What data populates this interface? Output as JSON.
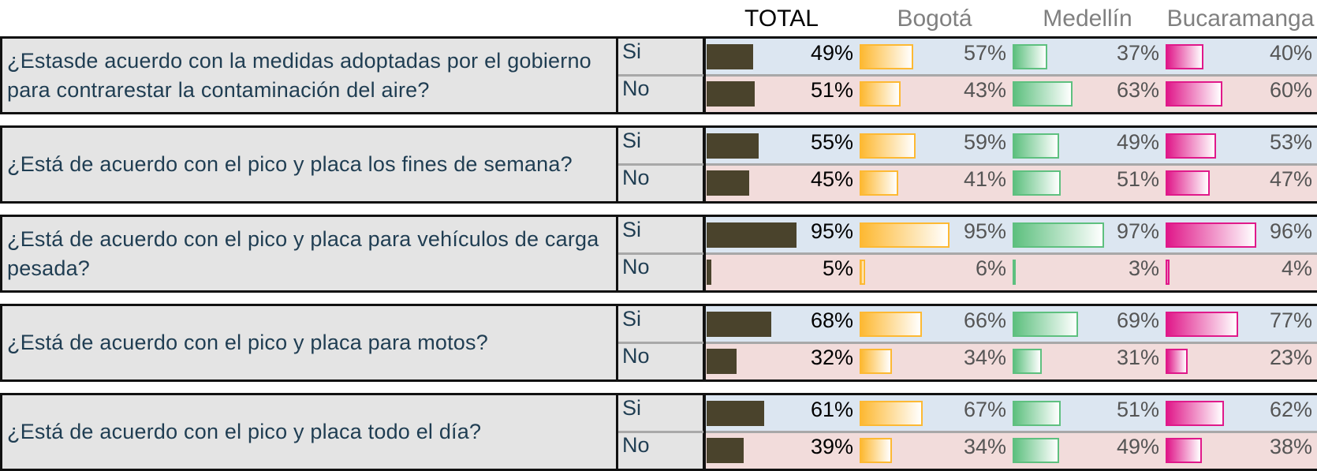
{
  "headers": {
    "total": "TOTAL",
    "bogota": "Bogotá",
    "medellin": "Medellín",
    "bucaramanga": "Bucaramanga"
  },
  "colors": {
    "si_row_bg": "#dce6f1",
    "no_row_bg": "#f2dcdb",
    "question_bg": "#e4e4e4",
    "question_text": "#1f3d52",
    "header_total": "#000000",
    "header_city": "#808080",
    "total_bar": "#4a432c",
    "bogota_bar": "#fdb933",
    "medellin_bar": "#5ec07f",
    "bucaramanga_bar": "#e0198a"
  },
  "questions": [
    {
      "text": "¿Estasde acuerdo con la medidas adoptadas por el gobierno para contrarestar la contaminación del aire?",
      "answers": [
        {
          "label": "Si",
          "total": "49%",
          "bogota": "57%",
          "medellin": "37%",
          "bucaramanga": "40%"
        },
        {
          "label": "No",
          "total": "51%",
          "bogota": "43%",
          "medellin": "63%",
          "bucaramanga": "60%"
        }
      ]
    },
    {
      "text": "¿Está de acuerdo con el pico y placa los fines de semana?",
      "answers": [
        {
          "label": "Si",
          "total": "55%",
          "bogota": "59%",
          "medellin": "49%",
          "bucaramanga": "53%"
        },
        {
          "label": "No",
          "total": "45%",
          "bogota": "41%",
          "medellin": "51%",
          "bucaramanga": "47%"
        }
      ]
    },
    {
      "text": "¿Está de acuerdo con el pico y placa para vehículos de carga pesada?",
      "answers": [
        {
          "label": "Si",
          "total": "95%",
          "bogota": "95%",
          "medellin": "97%",
          "bucaramanga": "96%"
        },
        {
          "label": "No",
          "total": "5%",
          "bogota": "6%",
          "medellin": "3%",
          "bucaramanga": "4%"
        }
      ]
    },
    {
      "text": "¿Está de acuerdo con el pico y placa para motos?",
      "answers": [
        {
          "label": "Si",
          "total": "68%",
          "bogota": "66%",
          "medellin": "69%",
          "bucaramanga": "77%"
        },
        {
          "label": "No",
          "total": "32%",
          "bogota": "34%",
          "medellin": "31%",
          "bucaramanga": "23%"
        }
      ]
    },
    {
      "text": "¿Está de acuerdo con el pico y placa todo el día?",
      "answers": [
        {
          "label": "Si",
          "total": "61%",
          "bogota": "67%",
          "medellin": "51%",
          "bucaramanga": "62%"
        },
        {
          "label": "No",
          "total": "39%",
          "bogota": "34%",
          "medellin": "49%",
          "bucaramanga": "38%"
        }
      ]
    }
  ],
  "chart_data": {
    "type": "bar",
    "orientation": "horizontal",
    "title": "",
    "groups": [
      "TOTAL",
      "Bogotá",
      "Medellín",
      "Bucaramanga"
    ],
    "categories": [
      "¿Estasde acuerdo con la medidas adoptadas por el gobierno para contrarestar la contaminación del aire?",
      "¿Está de acuerdo con el pico y placa los fines de semana?",
      "¿Está de acuerdo con el pico y placa para vehículos de carga pesada?",
      "¿Está de acuerdo con el pico y placa para motos?",
      "¿Está de acuerdo con el pico y placa todo el día?"
    ],
    "series": [
      {
        "name": "Si",
        "TOTAL": [
          49,
          55,
          95,
          68,
          61
        ],
        "Bogotá": [
          57,
          59,
          95,
          66,
          67
        ],
        "Medellín": [
          37,
          49,
          97,
          69,
          51
        ],
        "Bucaramanga": [
          40,
          53,
          96,
          77,
          62
        ]
      },
      {
        "name": "No",
        "TOTAL": [
          51,
          45,
          5,
          32,
          39
        ],
        "Bogotá": [
          43,
          41,
          6,
          34,
          34
        ],
        "Medellín": [
          63,
          51,
          3,
          31,
          49
        ],
        "Bucaramanga": [
          60,
          47,
          4,
          23,
          38
        ]
      }
    ],
    "unit": "%",
    "xlim": [
      0,
      100
    ]
  }
}
